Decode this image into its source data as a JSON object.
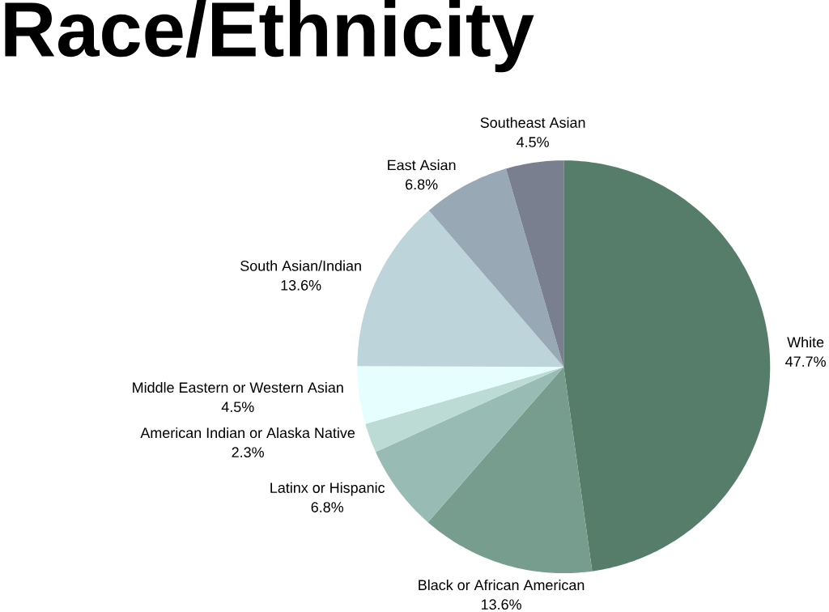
{
  "chart_data": {
    "type": "pie",
    "title": "Race/Ethnicity",
    "categories": [
      "White",
      "Black or African American",
      "Latinx or Hispanic",
      "American Indian or Alaska Native",
      "Middle Eastern or Western Asian",
      "South Asian/Indian",
      "East Asian",
      "Southeast Asian"
    ],
    "values": [
      47.7,
      13.6,
      6.8,
      2.3,
      4.5,
      13.6,
      6.8,
      4.5
    ],
    "value_labels": [
      "47.7%",
      "13.6%",
      "6.8%",
      "2.3%",
      "4.5%",
      "13.6%",
      "6.8%",
      "4.5%"
    ],
    "colors": [
      "#567d6a",
      "#769d8d",
      "#98bbb3",
      "#bcdbd5",
      "#e6fffe",
      "#bdd4da",
      "#98a8b5",
      "#7a7f8f"
    ]
  }
}
